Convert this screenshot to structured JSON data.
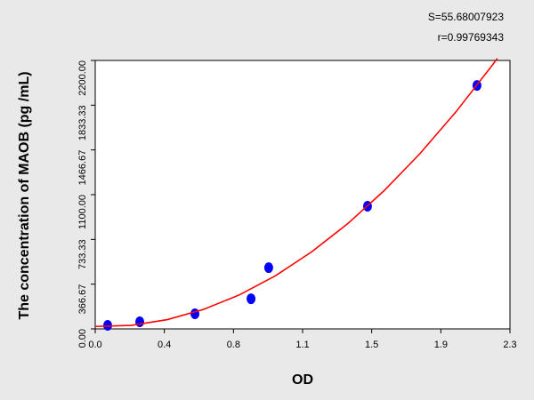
{
  "chart_data": {
    "type": "scatter",
    "annotations": [
      "S=55.68007923",
      "r=0.99769343"
    ],
    "x_label": "OD",
    "y_label": "The concentration of MAOB (pg /mL)",
    "xlim": [
      0,
      2.3
    ],
    "ylim": [
      0,
      2200
    ],
    "xticks": [
      {
        "value": 0,
        "label": "0.0"
      },
      {
        "value": 0.3833,
        "label": "0.4"
      },
      {
        "value": 0.7667,
        "label": "0.8"
      },
      {
        "value": 1.15,
        "label": "1.1"
      },
      {
        "value": 1.5333,
        "label": "1.5"
      },
      {
        "value": 1.9167,
        "label": "1.9"
      },
      {
        "value": 2.3,
        "label": "2.3"
      }
    ],
    "yticks": [
      {
        "value": 0,
        "label": "0.00"
      },
      {
        "value": 366.67,
        "label": "366.67"
      },
      {
        "value": 733.33,
        "label": "733.33"
      },
      {
        "value": 1100,
        "label": "1100.00"
      },
      {
        "value": 1466.67,
        "label": "1466.67"
      },
      {
        "value": 1833.33,
        "label": "1833.33"
      },
      {
        "value": 2200,
        "label": "2200.00"
      }
    ],
    "grid": false,
    "series": [
      {
        "type": "scatter",
        "color": "#0000ff",
        "x": [
          0.069,
          0.247,
          0.553,
          0.864,
          0.962,
          1.51,
          2.117
        ],
        "values": [
          29,
          58,
          124,
          247,
          502,
          1005,
          1995
        ]
      },
      {
        "type": "line",
        "color": "#ff0000",
        "x": [
          0,
          0.2,
          0.4,
          0.6,
          0.8,
          1.0,
          1.2,
          1.4,
          1.6,
          1.8,
          2.0,
          2.2,
          2.23
        ],
        "values": [
          20,
          29,
          76,
          159,
          279,
          436,
          631,
          862,
          1130,
          1435,
          1778,
          2157,
          2217
        ]
      }
    ]
  }
}
